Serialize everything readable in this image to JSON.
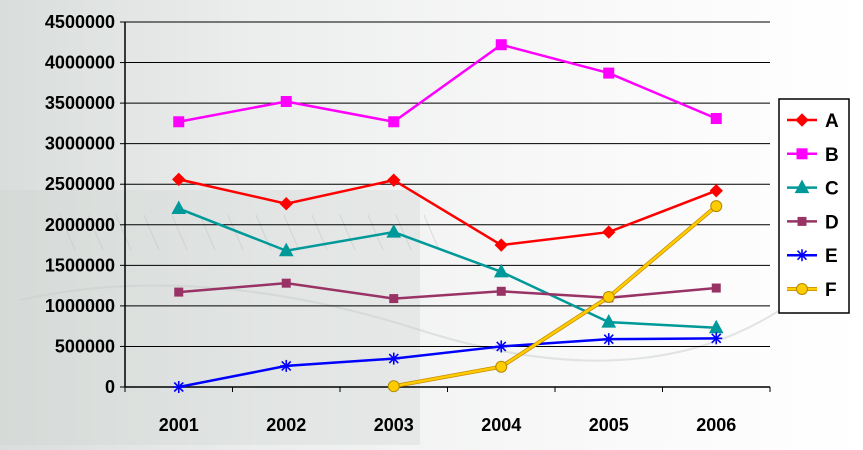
{
  "chart_data": {
    "type": "line",
    "title": "",
    "xlabel": "",
    "ylabel": "",
    "categories": [
      "2001",
      "2002",
      "2003",
      "2004",
      "2005",
      "2006"
    ],
    "ylim": [
      0,
      4500000
    ],
    "yticks": [
      0,
      500000,
      1000000,
      1500000,
      2000000,
      2500000,
      3000000,
      3500000,
      4000000,
      4500000
    ],
    "ytick_labels": [
      "0",
      "500000",
      "1000000",
      "1500000",
      "2000000",
      "2500000",
      "3000000",
      "3500000",
      "4000000",
      "4500000"
    ],
    "grid": "horizontal",
    "legend_position": "right",
    "series": [
      {
        "name": "A",
        "color": "#ff0000",
        "marker": "diamond",
        "values": [
          2560000,
          2260000,
          2550000,
          1750000,
          1910000,
          2420000
        ]
      },
      {
        "name": "B",
        "color": "#ff00ff",
        "marker": "square",
        "values": [
          3270000,
          3520000,
          3270000,
          4220000,
          3870000,
          3310000
        ]
      },
      {
        "name": "C",
        "color": "#009999",
        "marker": "triangle",
        "values": [
          2200000,
          1680000,
          1910000,
          1420000,
          800000,
          730000
        ]
      },
      {
        "name": "D",
        "color": "#993366",
        "marker": "square-small",
        "values": [
          1170000,
          1280000,
          1090000,
          1180000,
          1100000,
          1220000
        ]
      },
      {
        "name": "E",
        "color": "#0000ff",
        "marker": "asterisk",
        "values": [
          0,
          260000,
          350000,
          500000,
          590000,
          600000
        ]
      },
      {
        "name": "F",
        "color": "#ffcc00",
        "marker": "circle",
        "values": [
          null,
          null,
          10000,
          250000,
          1110000,
          2230000
        ]
      }
    ]
  }
}
